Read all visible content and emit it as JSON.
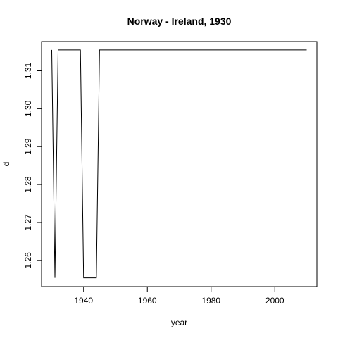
{
  "chart_data": {
    "type": "line",
    "title": "Norway - Ireland, 1930",
    "xlabel": "year",
    "ylabel": "d",
    "xlim": [
      1926.8,
      2013.2
    ],
    "ylim": [
      1.2531,
      1.3177
    ],
    "x_ticks": [
      "1940",
      "1960",
      "1980",
      "2000"
    ],
    "y_ticks": [
      "1.26",
      "1.27",
      "1.28",
      "1.29",
      "1.30",
      "1.31"
    ],
    "series": [
      {
        "x": [
          1930,
          1931,
          1932,
          1933,
          1939,
          1940,
          1944,
          1945,
          2010
        ],
        "y": [
          1.3155,
          1.2554,
          1.3155,
          1.3155,
          1.3155,
          1.2554,
          1.2554,
          1.3155,
          1.3155
        ],
        "color": "#000000"
      }
    ]
  }
}
